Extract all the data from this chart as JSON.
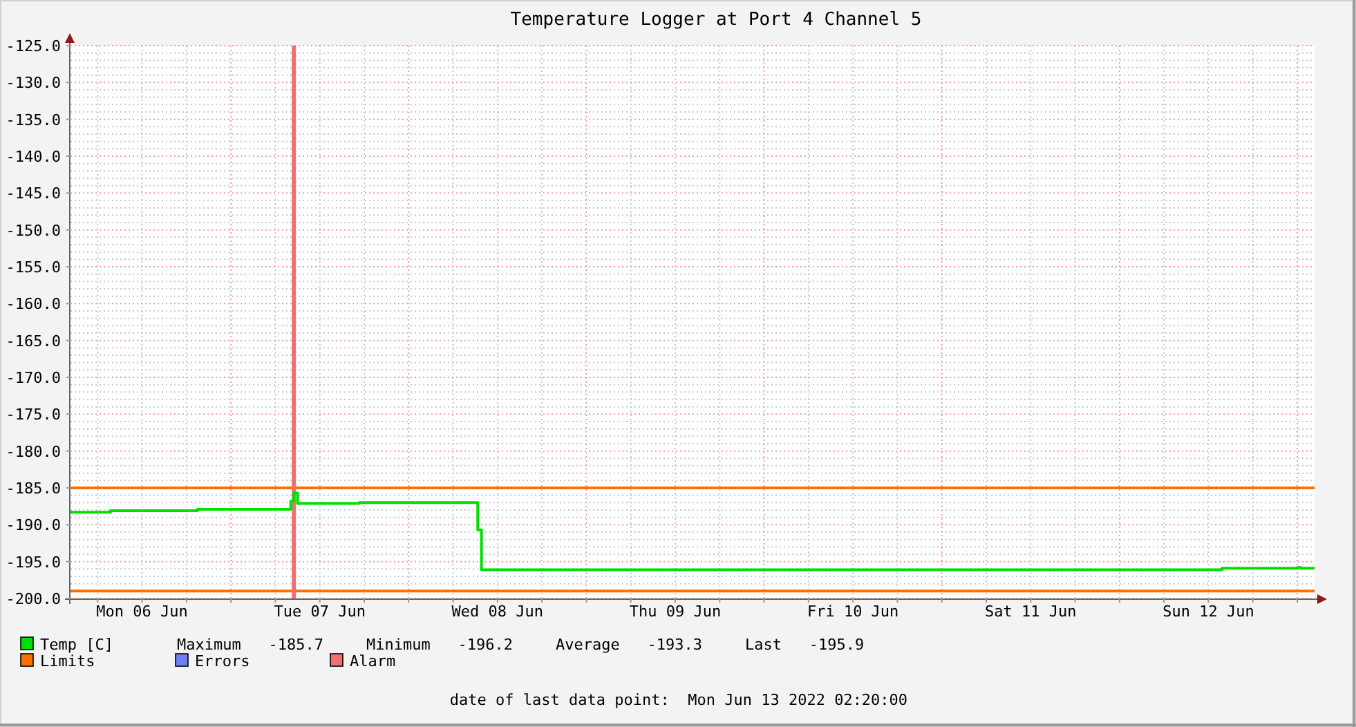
{
  "chart_data": {
    "type": "step",
    "title": "Temperature Logger at Port 4 Channel 5",
    "xlim": [
      "2022-06-06T02:20",
      "2022-06-13T02:20"
    ],
    "xticks": [
      {
        "value": "2022-06-06T06:00",
        "label": null
      },
      {
        "value": "2022-06-06T12:00",
        "label": "Mon 06 Jun"
      },
      {
        "value": "2022-06-06T18:00",
        "label": null
      },
      {
        "value": "2022-06-07T00:00",
        "label": null
      },
      {
        "value": "2022-06-07T06:00",
        "label": null
      },
      {
        "value": "2022-06-07T12:00",
        "label": "Tue 07 Jun"
      },
      {
        "value": "2022-06-07T18:00",
        "label": null
      },
      {
        "value": "2022-06-08T00:00",
        "label": null
      },
      {
        "value": "2022-06-08T06:00",
        "label": null
      },
      {
        "value": "2022-06-08T12:00",
        "label": "Wed 08 Jun"
      },
      {
        "value": "2022-06-08T18:00",
        "label": null
      },
      {
        "value": "2022-06-09T00:00",
        "label": null
      },
      {
        "value": "2022-06-09T06:00",
        "label": null
      },
      {
        "value": "2022-06-09T12:00",
        "label": "Thu 09 Jun"
      },
      {
        "value": "2022-06-09T18:00",
        "label": null
      },
      {
        "value": "2022-06-10T00:00",
        "label": null
      },
      {
        "value": "2022-06-10T06:00",
        "label": null
      },
      {
        "value": "2022-06-10T12:00",
        "label": "Fri 10 Jun"
      },
      {
        "value": "2022-06-10T18:00",
        "label": null
      },
      {
        "value": "2022-06-11T00:00",
        "label": null
      },
      {
        "value": "2022-06-11T06:00",
        "label": null
      },
      {
        "value": "2022-06-11T12:00",
        "label": "Sat 11 Jun"
      },
      {
        "value": "2022-06-11T18:00",
        "label": null
      },
      {
        "value": "2022-06-12T00:00",
        "label": null
      },
      {
        "value": "2022-06-12T06:00",
        "label": null
      },
      {
        "value": "2022-06-12T12:00",
        "label": "Sun 12 Jun"
      },
      {
        "value": "2022-06-12T18:00",
        "label": null
      },
      {
        "value": "2022-06-13T00:00",
        "label": null
      }
    ],
    "ylim": [
      -200,
      -125
    ],
    "yticks": [
      {
        "value": -200,
        "label": "-200.0"
      },
      {
        "value": -195,
        "label": "-195.0"
      },
      {
        "value": -190,
        "label": "-190.0"
      },
      {
        "value": -185,
        "label": "-185.0"
      },
      {
        "value": -180,
        "label": "-180.0"
      },
      {
        "value": -175,
        "label": "-175.0"
      },
      {
        "value": -170,
        "label": "-170.0"
      },
      {
        "value": -165,
        "label": "-165.0"
      },
      {
        "value": -160,
        "label": "-160.0"
      },
      {
        "value": -155,
        "label": "-155.0"
      },
      {
        "value": -150,
        "label": "-150.0"
      },
      {
        "value": -145,
        "label": "-145.0"
      },
      {
        "value": -140,
        "label": "-140.0"
      },
      {
        "value": -135,
        "label": "-135.0"
      },
      {
        "value": -130,
        "label": "-130.0"
      },
      {
        "value": -125,
        "label": "-125.0"
      }
    ],
    "grid": true,
    "legend": "bottom",
    "series": [
      {
        "name": "Temp [C]",
        "color": "#00e000",
        "x": [
          "2022-06-06T02:20",
          "2022-06-06T07:45",
          "2022-06-06T19:30",
          "2022-06-07T08:05",
          "2022-06-07T08:30",
          "2022-06-07T09:00",
          "2022-06-07T17:20",
          "2022-06-08T09:20",
          "2022-06-08T09:50",
          "2022-06-12T13:50",
          "2022-06-13T00:00",
          "2022-06-13T00:30",
          "2022-06-13T02:20"
        ],
        "values": [
          -188.3,
          -188.1,
          -187.9,
          -186.8,
          -185.7,
          -187.1,
          -187.0,
          -190.7,
          -196.1,
          -195.9,
          -195.8,
          -195.9,
          -195.9
        ]
      },
      {
        "name": "Errors",
        "color": "#7080f0"
      }
    ],
    "ref_lines": [
      {
        "axis": "y",
        "value": -185,
        "label": "Limits",
        "color": "#ff7000"
      },
      {
        "axis": "y",
        "value": -199,
        "color": "#ff7000"
      },
      {
        "axis": "x",
        "value": "2022-06-07T08:30",
        "label": "Alarm",
        "color": "#f07070"
      }
    ],
    "annotations": [
      "Maximum   -185.7",
      "Minimum   -196.2",
      "Average   -193.3",
      "Last   -195.9",
      "date of last data point:  Mon Jun 13 2022 02:20:00"
    ]
  }
}
